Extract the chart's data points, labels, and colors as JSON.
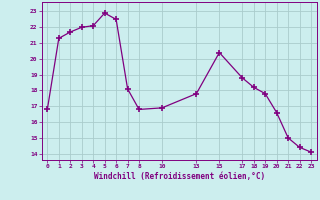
{
  "x": [
    0,
    1,
    2,
    3,
    4,
    5,
    6,
    7,
    8,
    10,
    13,
    15,
    17,
    18,
    19,
    20,
    21,
    22,
    23
  ],
  "y": [
    16.8,
    21.3,
    21.7,
    22.0,
    22.1,
    22.9,
    22.5,
    18.1,
    16.8,
    16.9,
    17.8,
    20.4,
    18.8,
    18.2,
    17.8,
    16.6,
    15.0,
    14.4,
    14.1
  ],
  "xticks": [
    0,
    1,
    2,
    3,
    4,
    5,
    6,
    7,
    8,
    10,
    13,
    15,
    17,
    18,
    19,
    20,
    21,
    22,
    23
  ],
  "yticks": [
    14,
    15,
    16,
    17,
    18,
    19,
    20,
    21,
    22,
    23
  ],
  "xlim": [
    -0.5,
    23.5
  ],
  "ylim": [
    13.6,
    23.6
  ],
  "xlabel": "Windchill (Refroidissement éolien,°C)",
  "line_color": "#800080",
  "marker_color": "#800080",
  "bg_color": "#cceeee",
  "grid_color": "#aacccc",
  "label_color": "#800080"
}
